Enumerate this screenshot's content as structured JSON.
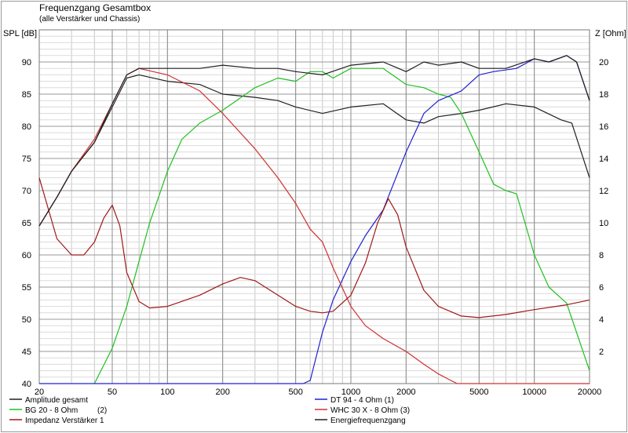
{
  "chart_data": {
    "type": "line",
    "title": "Frequenzgang Gesamtbox",
    "subtitle": "(alle Verstärker und Chassis)",
    "xlabel": "",
    "ylabel_left": "SPL [dB]",
    "ylabel_right": "Z [Ohm]",
    "x_scale": "log",
    "xlim": [
      20,
      20000
    ],
    "ylim_left": [
      40,
      95
    ],
    "ylim_right": [
      0,
      22
    ],
    "grid": true,
    "x_ticks": [
      20,
      50,
      100,
      200,
      500,
      1000,
      2000,
      5000,
      10000,
      20000
    ],
    "x_tick_labels": [
      "20",
      "50",
      "100",
      "200",
      "500",
      "1000",
      "2000",
      "5000",
      "10000",
      "20000"
    ],
    "y_left_ticks": [
      40,
      45,
      50,
      55,
      60,
      65,
      70,
      75,
      80,
      85,
      90
    ],
    "y_right_ticks": [
      2,
      4,
      6,
      8,
      10,
      12,
      14,
      16,
      18,
      20
    ],
    "legend": [
      {
        "name": "Amplitude gesamt",
        "color": "#202020"
      },
      {
        "name": "BG 20 - 8 Ohm",
        "note": "(2)",
        "color": "#20c020"
      },
      {
        "name": "Impedanz Verstärker 1",
        "color": "#a01818"
      },
      {
        "name": "DT 94 - 4 Ohm (1)",
        "color": "#2020d0"
      },
      {
        "name": "WHC 30 X - 8 Ohm (3)",
        "color": "#d03030"
      },
      {
        "name": "Energiefrequenzgang",
        "color": "#202020"
      }
    ],
    "series": [
      {
        "name": "Amplitude gesamt",
        "axis": "left",
        "color": "#202020",
        "x": [
          20,
          25,
          30,
          40,
          50,
          60,
          70,
          100,
          150,
          200,
          300,
          400,
          500,
          700,
          1000,
          1500,
          2000,
          2500,
          3000,
          4000,
          5000,
          7000,
          10000,
          14000,
          16000,
          20000
        ],
        "y": [
          64.5,
          69,
          73,
          77.5,
          83,
          87.5,
          88,
          87,
          86.5,
          85,
          84.5,
          84,
          83,
          82,
          83,
          83.5,
          81,
          80.5,
          81.5,
          82,
          82.5,
          83.5,
          83,
          81,
          80.5,
          72
        ]
      },
      {
        "name": "BG 20 - 8 Ohm",
        "axis": "left",
        "color": "#20c020",
        "x": [
          40,
          50,
          60,
          70,
          80,
          100,
          120,
          150,
          200,
          300,
          400,
          500,
          600,
          700,
          800,
          1000,
          1500,
          2000,
          2500,
          3000,
          3500,
          4000,
          5000,
          6000,
          7000,
          8000,
          10000,
          12000,
          15000,
          20000
        ],
        "y": [
          40,
          45.5,
          52,
          59,
          65,
          73,
          78,
          80.5,
          82.5,
          86,
          87.5,
          87,
          88.5,
          88.5,
          87.5,
          89,
          89,
          86.5,
          86,
          85,
          84.5,
          82,
          76,
          71,
          70,
          69.5,
          60,
          55,
          52.5,
          42
        ]
      },
      {
        "name": "DT 94 - 4 Ohm (1)",
        "axis": "left",
        "color": "#2020d0",
        "x": [
          20,
          300,
          550,
          600,
          700,
          800,
          1000,
          1200,
          1500,
          2000,
          2500,
          3000,
          4000,
          5000,
          6000,
          8000,
          10000,
          12000,
          15000,
          17000,
          20000
        ],
        "y": [
          40,
          40,
          40,
          40.5,
          48,
          53,
          59,
          63,
          67,
          76,
          82,
          84,
          85.5,
          88,
          88.5,
          89,
          90.5,
          90,
          91,
          90,
          84
        ]
      },
      {
        "name": "WHC 30 X - 8 Ohm (3)",
        "axis": "left",
        "color": "#d03030",
        "x": [
          20,
          25,
          30,
          40,
          50,
          60,
          70,
          100,
          150,
          200,
          300,
          400,
          500,
          600,
          700,
          800,
          1000,
          1200,
          1500,
          2000,
          2500,
          3000,
          3500,
          3800,
          4000,
          20000
        ],
        "y": [
          64.5,
          69,
          73,
          78,
          83.5,
          88,
          89,
          88,
          85.5,
          82,
          76.5,
          72,
          68,
          64,
          62,
          58,
          52,
          49,
          47,
          45,
          43,
          41.5,
          40.5,
          40,
          40,
          40
        ]
      },
      {
        "name": "Impedanz Verstärker 1",
        "axis": "right",
        "color": "#a01818",
        "x": [
          20,
          25,
          30,
          35,
          40,
          45,
          50,
          55,
          60,
          70,
          80,
          100,
          150,
          200,
          250,
          300,
          400,
          500,
          600,
          700,
          800,
          1000,
          1200,
          1400,
          1600,
          1800,
          2000,
          2500,
          3000,
          4000,
          5000,
          7000,
          10000,
          15000,
          20000
        ],
        "y": [
          12.8,
          9,
          8,
          8,
          8.8,
          10.3,
          11.1,
          9.8,
          6.9,
          5.1,
          4.7,
          4.8,
          5.5,
          6.2,
          6.6,
          6.4,
          5.5,
          4.8,
          4.5,
          4.4,
          4.5,
          5.5,
          7.5,
          10,
          11.5,
          10.5,
          8.5,
          5.8,
          4.8,
          4.2,
          4.1,
          4.3,
          4.6,
          4.9,
          5.2
        ]
      },
      {
        "name": "Energiefrequenzgang",
        "axis": "left",
        "color": "#202020",
        "x": [
          20,
          25,
          30,
          40,
          50,
          60,
          70,
          100,
          150,
          200,
          300,
          400,
          500,
          700,
          1000,
          1500,
          2000,
          2500,
          3000,
          4000,
          5000,
          7000,
          10000,
          12000,
          15000,
          17000,
          20000
        ],
        "y": [
          64.5,
          69,
          73,
          77.5,
          83.5,
          88,
          89,
          89,
          89,
          89.5,
          89,
          89,
          88.5,
          88,
          89.5,
          90,
          88.5,
          90,
          89.5,
          90,
          89,
          89,
          90.5,
          90,
          91,
          90,
          84
        ]
      }
    ]
  }
}
